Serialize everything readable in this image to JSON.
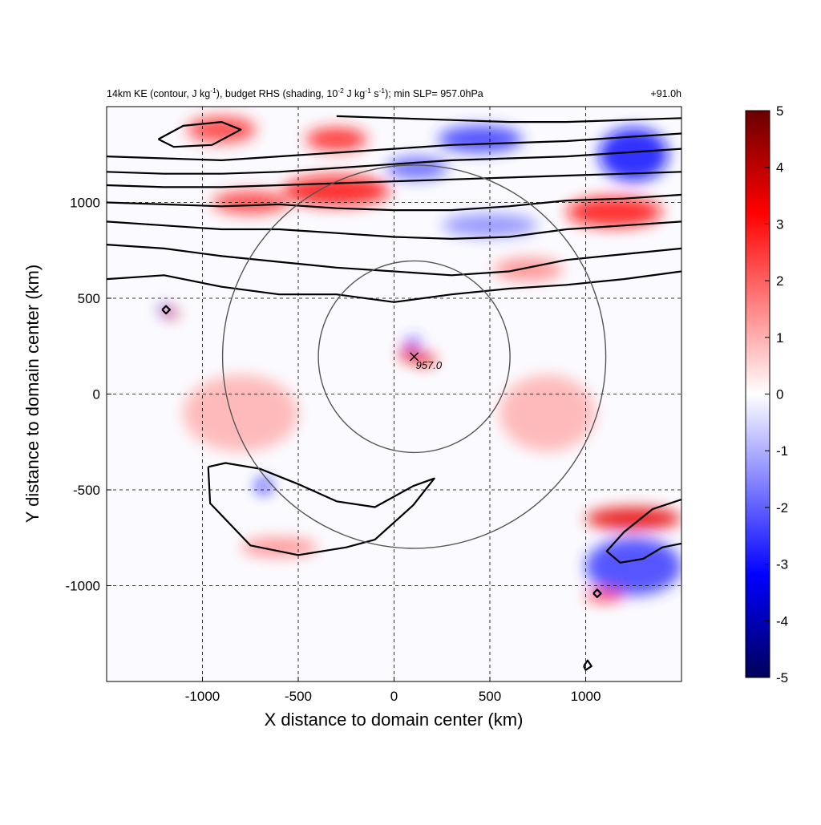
{
  "chart_data": {
    "type": "heatmap",
    "title_parts": {
      "p1": "14km KE (contour, J kg",
      "p1_sup": "-1",
      "p2": "), budget RHS (shading, 10",
      "p2_sup": "-2",
      "p3": " J kg",
      "p3_sup": "-1",
      "p4": " s",
      "p4_sup": "-1",
      "p5": "); min SLP= 957.0hPa"
    },
    "time_label": "+91.0h",
    "xlabel": "X distance to domain center (km)",
    "ylabel": "Y distance to domain center (km)",
    "xlim": [
      -1500,
      1500
    ],
    "ylim": [
      -1500,
      1500
    ],
    "x_ticks": [
      -1000,
      -500,
      0,
      500,
      1000
    ],
    "y_ticks": [
      -1000,
      -500,
      0,
      500,
      1000
    ],
    "x_tick_labels": [
      "-1000",
      "-500",
      "0",
      "500",
      "1000"
    ],
    "y_tick_labels": [
      "-1000",
      "-500",
      "0",
      "500",
      "1000"
    ],
    "grid": true,
    "colorbar": {
      "range": [
        -5,
        5
      ],
      "ticks": [
        5,
        4,
        3,
        2,
        1,
        0,
        -1,
        -2,
        -3,
        -4,
        -5
      ],
      "tick_labels": [
        "5",
        "4",
        "3",
        "2",
        "1",
        "0",
        "-1",
        "-2",
        "-3",
        "-4",
        "-5"
      ],
      "colors": [
        "#00005a",
        "#0000ff",
        "#ffffff",
        "#ff0000",
        "#6a0000"
      ]
    },
    "storm_center": {
      "x": 105,
      "y": 195,
      "label": "957.0"
    },
    "range_rings_km": [
      500,
      1000
    ],
    "shading_features": [
      {
        "x": -900,
        "y": 1380,
        "v": 2.5,
        "rx": 180,
        "ry": 70
      },
      {
        "x": -300,
        "y": 1330,
        "v": 2.8,
        "rx": 160,
        "ry": 60
      },
      {
        "x": -300,
        "y": 1060,
        "v": 3.0,
        "rx": 280,
        "ry": 80
      },
      {
        "x": -750,
        "y": 1000,
        "v": 2.5,
        "rx": 200,
        "ry": 60
      },
      {
        "x": 120,
        "y": 1180,
        "v": -2.0,
        "rx": 160,
        "ry": 60
      },
      {
        "x": 450,
        "y": 1330,
        "v": -2.5,
        "rx": 220,
        "ry": 70
      },
      {
        "x": 1250,
        "y": 1250,
        "v": -3.0,
        "rx": 180,
        "ry": 140
      },
      {
        "x": 1150,
        "y": 950,
        "v": 3.0,
        "rx": 250,
        "ry": 80
      },
      {
        "x": 500,
        "y": 880,
        "v": -1.5,
        "rx": 250,
        "ry": 60
      },
      {
        "x": 700,
        "y": 650,
        "v": 1.5,
        "rx": 180,
        "ry": 60
      },
      {
        "x": -1200,
        "y": 440,
        "v": -4.0,
        "rx": 25,
        "ry": 25
      },
      {
        "x": -1160,
        "y": 420,
        "v": 4.0,
        "rx": 30,
        "ry": 25
      },
      {
        "x": 80,
        "y": 210,
        "v": 3.5,
        "rx": 50,
        "ry": 40
      },
      {
        "x": 160,
        "y": 180,
        "v": 3.5,
        "rx": 60,
        "ry": 30
      },
      {
        "x": 100,
        "y": 270,
        "v": -2.5,
        "rx": 40,
        "ry": 25
      },
      {
        "x": -680,
        "y": -480,
        "v": -3.0,
        "rx": 40,
        "ry": 40
      },
      {
        "x": -600,
        "y": -800,
        "v": 1.5,
        "rx": 200,
        "ry": 50
      },
      {
        "x": 1250,
        "y": -650,
        "v": 3.5,
        "rx": 250,
        "ry": 60
      },
      {
        "x": 1250,
        "y": -900,
        "v": -2.5,
        "rx": 250,
        "ry": 150
      },
      {
        "x": 1100,
        "y": -1050,
        "v": 3.0,
        "rx": 100,
        "ry": 30
      },
      {
        "x": -800,
        "y": -100,
        "v": 1.0,
        "rx": 300,
        "ry": 200
      },
      {
        "x": 800,
        "y": -100,
        "v": 1.0,
        "rx": 250,
        "ry": 200
      }
    ],
    "ke_contours": [
      [
        [
          -1500,
          600
        ],
        [
          -1200,
          620
        ],
        [
          -900,
          560
        ],
        [
          -600,
          520
        ],
        [
          -300,
          520
        ],
        [
          0,
          480
        ],
        [
          300,
          520
        ],
        [
          600,
          550
        ],
        [
          900,
          570
        ],
        [
          1200,
          600
        ],
        [
          1500,
          640
        ]
      ],
      [
        [
          -1500,
          780
        ],
        [
          -1200,
          760
        ],
        [
          -900,
          720
        ],
        [
          -600,
          690
        ],
        [
          -300,
          660
        ],
        [
          0,
          640
        ],
        [
          300,
          620
        ],
        [
          600,
          640
        ],
        [
          900,
          700
        ],
        [
          1200,
          730
        ],
        [
          1500,
          760
        ]
      ],
      [
        [
          -1500,
          900
        ],
        [
          -1200,
          880
        ],
        [
          -900,
          860
        ],
        [
          -600,
          860
        ],
        [
          -300,
          840
        ],
        [
          0,
          820
        ],
        [
          300,
          810
        ],
        [
          600,
          820
        ],
        [
          900,
          860
        ],
        [
          1200,
          880
        ],
        [
          1500,
          900
        ]
      ],
      [
        [
          -1500,
          1000
        ],
        [
          -1200,
          990
        ],
        [
          -900,
          980
        ],
        [
          -600,
          990
        ],
        [
          -300,
          970
        ],
        [
          0,
          960
        ],
        [
          300,
          960
        ],
        [
          600,
          980
        ],
        [
          900,
          1010
        ],
        [
          1200,
          1020
        ],
        [
          1500,
          1040
        ]
      ],
      [
        [
          -1500,
          1090
        ],
        [
          -1200,
          1080
        ],
        [
          -900,
          1080
        ],
        [
          -600,
          1090
        ],
        [
          -300,
          1100
        ],
        [
          0,
          1110
        ],
        [
          300,
          1120
        ],
        [
          600,
          1130
        ],
        [
          900,
          1140
        ],
        [
          1200,
          1150
        ],
        [
          1500,
          1160
        ]
      ],
      [
        [
          -1500,
          1160
        ],
        [
          -1200,
          1150
        ],
        [
          -900,
          1150
        ],
        [
          -600,
          1160
        ],
        [
          -300,
          1180
        ],
        [
          0,
          1200
        ],
        [
          300,
          1220
        ],
        [
          600,
          1230
        ],
        [
          900,
          1240
        ],
        [
          1200,
          1260
        ],
        [
          1500,
          1280
        ]
      ],
      [
        [
          -1500,
          1240
        ],
        [
          -1200,
          1230
        ],
        [
          -900,
          1220
        ],
        [
          -600,
          1240
        ],
        [
          -300,
          1260
        ],
        [
          0,
          1280
        ],
        [
          300,
          1300
        ],
        [
          600,
          1310
        ],
        [
          900,
          1320
        ],
        [
          1200,
          1340
        ],
        [
          1500,
          1360
        ]
      ],
      [
        [
          -300,
          1450
        ],
        [
          0,
          1440
        ],
        [
          300,
          1430
        ],
        [
          600,
          1420
        ],
        [
          900,
          1420
        ],
        [
          1200,
          1430
        ],
        [
          1500,
          1440
        ]
      ],
      [
        [
          -1230,
          1330
        ],
        [
          -1100,
          1400
        ],
        [
          -900,
          1420
        ],
        [
          -800,
          1380
        ],
        [
          -950,
          1300
        ],
        [
          -1150,
          1290
        ],
        [
          -1230,
          1330
        ]
      ],
      [
        [
          -970,
          -380
        ],
        [
          -880,
          -360
        ],
        [
          -700,
          -390
        ],
        [
          -500,
          -470
        ],
        [
          -300,
          -560
        ],
        [
          -100,
          -590
        ],
        [
          100,
          -480
        ],
        [
          210,
          -440
        ],
        [
          100,
          -580
        ],
        [
          -100,
          -760
        ],
        [
          -250,
          -800
        ],
        [
          -500,
          -840
        ],
        [
          -750,
          -790
        ],
        [
          -960,
          -570
        ],
        [
          -970,
          -380
        ]
      ],
      [
        [
          1500,
          -550
        ],
        [
          1350,
          -600
        ],
        [
          1200,
          -720
        ],
        [
          1110,
          -820
        ],
        [
          1180,
          -880
        ],
        [
          1300,
          -860
        ],
        [
          1400,
          -800
        ],
        [
          1500,
          -780
        ]
      ],
      [
        [
          1040,
          -1040
        ],
        [
          1060,
          -1020
        ],
        [
          1080,
          -1040
        ],
        [
          1060,
          -1060
        ],
        [
          1040,
          -1040
        ]
      ],
      [
        [
          990,
          -1420
        ],
        [
          1010,
          -1390
        ],
        [
          1030,
          -1420
        ],
        [
          1000,
          -1440
        ],
        [
          990,
          -1420
        ]
      ],
      [
        [
          -1210,
          440
        ],
        [
          -1190,
          460
        ],
        [
          -1170,
          440
        ],
        [
          -1190,
          420
        ],
        [
          -1210,
          440
        ]
      ]
    ]
  }
}
